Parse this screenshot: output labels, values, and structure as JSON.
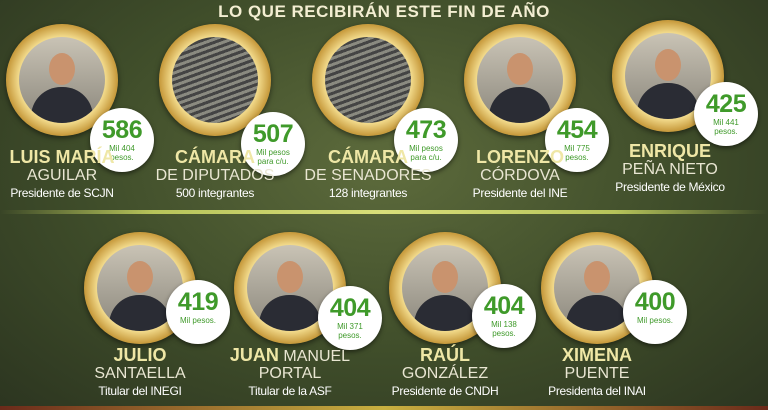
{
  "title": "LO QUE RECIBIRÁN ESTE FIN DE AÑO",
  "colors": {
    "amount": "#3f9a2a",
    "name_first": "#efe7a6",
    "background": "#3f4d2a",
    "frame": "#e3c477"
  },
  "people": [
    {
      "first": "LUIS MARÍA",
      "last": "AGUILAR",
      "role": "Presidente de SCJN",
      "amount": "586",
      "detail": "Mil 404 pesos.",
      "photo": "portrait"
    },
    {
      "first": "CÁMARA",
      "last": "DE DIPUTADOS",
      "role": "500 integrantes",
      "amount": "507",
      "detail": "Mil pesos para c/u.",
      "photo": "chamber"
    },
    {
      "first": "CÁMARA",
      "last": "DE SENADORES",
      "role": "128 integrantes",
      "amount": "473",
      "detail": "Mil pesos para c/u.",
      "photo": "chamber"
    },
    {
      "first": "LORENZO",
      "last": "CÓRDOVA",
      "role": "Presidente del INE",
      "amount": "454",
      "detail": "Mil 775 pesos.",
      "photo": "portrait"
    },
    {
      "first": "ENRIQUE",
      "last": "PEÑA NIETO",
      "role": "Presidente de México",
      "amount": "425",
      "detail": "Mil 441 pesos.",
      "photo": "portrait"
    },
    {
      "first": "JULIO",
      "last": "SANTAELLA",
      "role": "Titular del INEGI",
      "amount": "419",
      "detail": "Mil pesos.",
      "photo": "portrait"
    },
    {
      "first": "JUAN",
      "last": "MANUEL",
      "last2": "PORTAL",
      "role": "Titular de la ASF",
      "amount": "404",
      "detail": "Mil 371 pesos.",
      "photo": "portrait"
    },
    {
      "first": "RAÚL",
      "last": "GONZÁLEZ",
      "role": "Presidente de CNDH",
      "amount": "404",
      "detail": "Mil 138 pesos.",
      "photo": "portrait"
    },
    {
      "first": "XIMENA",
      "last": "PUENTE",
      "role": "Presidenta del INAI",
      "amount": "400",
      "detail": "Mil pesos.",
      "photo": "portrait"
    }
  ]
}
